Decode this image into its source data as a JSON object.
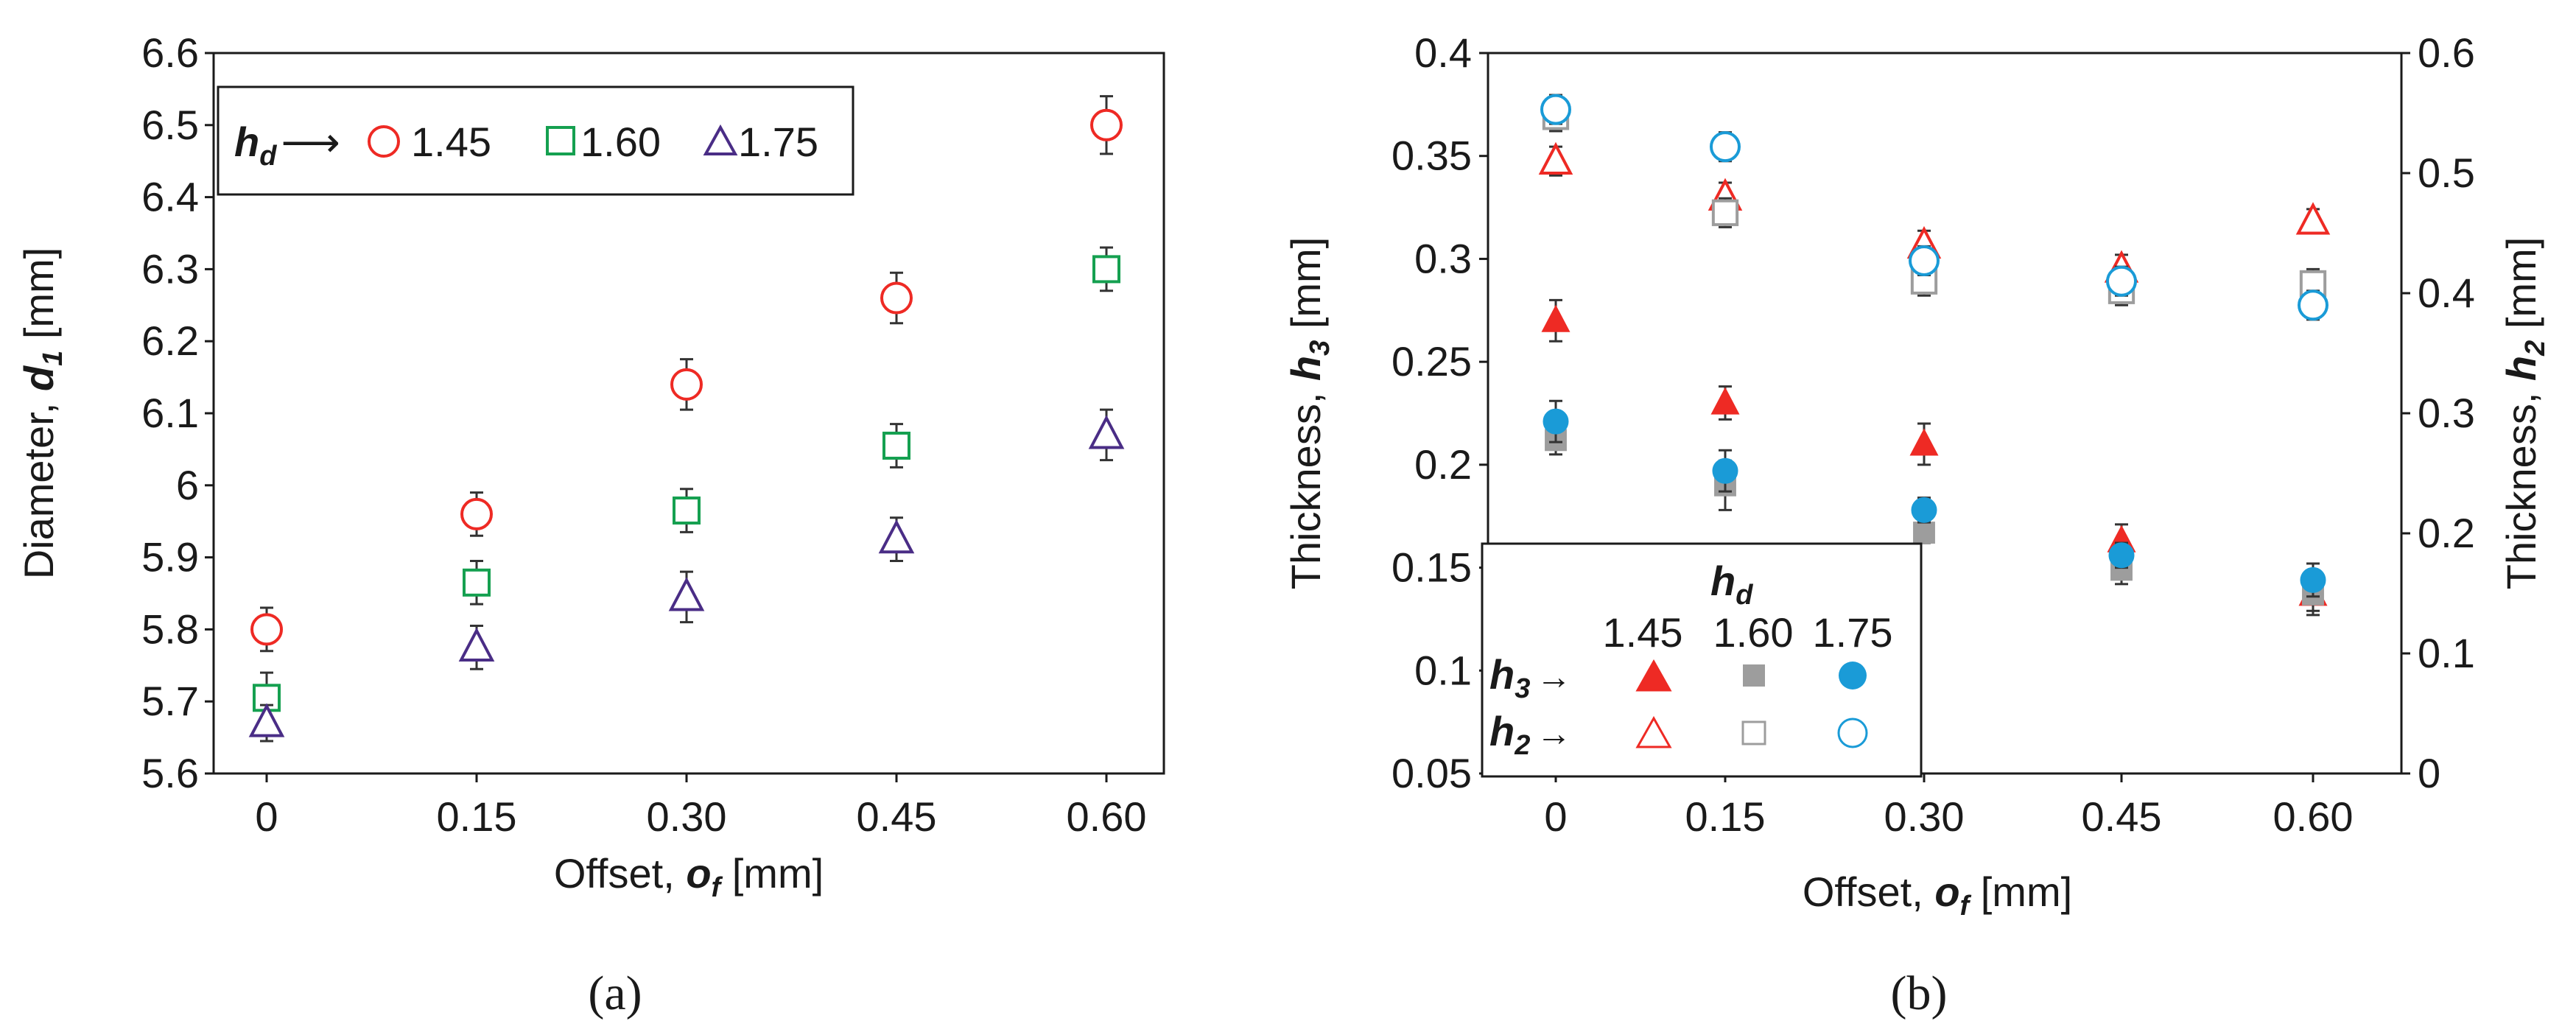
{
  "colors": {
    "red": "#ee2a24",
    "green": "#15a050",
    "purple": "#4a2d86",
    "gray": "#9d9d9d",
    "blue": "#1a9bd7",
    "errorbar": "#333333"
  },
  "chart_data": [
    {
      "id": "a",
      "type": "scatter",
      "caption": "(a)",
      "xlabel": "Offset, ",
      "xlabel_symbol": "o",
      "xlabel_sub": "f",
      "xlabel_unit": " [mm]",
      "ylabel": "Diameter, ",
      "ylabel_symbol": "d",
      "ylabel_sub": "1",
      "ylabel_unit": " [mm]",
      "categories": [
        "0",
        "0.15",
        "0.30",
        "0.45",
        "0.60"
      ],
      "ylim": [
        5.6,
        6.6
      ],
      "yticks": [
        {
          "v": 5.6,
          "label": "5.6"
        },
        {
          "v": 5.7,
          "label": "5.7"
        },
        {
          "v": 5.8,
          "label": "5.8"
        },
        {
          "v": 5.9,
          "label": "5.9"
        },
        {
          "v": 6.0,
          "label": "6"
        },
        {
          "v": 6.1,
          "label": "6.1"
        },
        {
          "v": 6.2,
          "label": "6.2"
        },
        {
          "v": 6.3,
          "label": "6.3"
        },
        {
          "v": 6.4,
          "label": "6.4"
        },
        {
          "v": 6.5,
          "label": "6.5"
        },
        {
          "v": 6.6,
          "label": "6.6"
        }
      ],
      "legend": {
        "title_symbol": "h",
        "title_sub": "d",
        "arrow": "⟶",
        "position": "top-left",
        "entries": [
          "1.45",
          "1.60",
          "1.75"
        ]
      },
      "series": [
        {
          "name": "1.45",
          "marker": "circle",
          "color": "red",
          "values": [
            5.8,
            5.96,
            6.14,
            6.26,
            6.5
          ],
          "error": [
            0.03,
            0.03,
            0.035,
            0.035,
            0.04
          ]
        },
        {
          "name": "1.60",
          "marker": "square",
          "color": "green",
          "values": [
            5.705,
            5.865,
            5.965,
            6.055,
            6.3
          ],
          "error": [
            0.035,
            0.03,
            0.03,
            0.03,
            0.03
          ]
        },
        {
          "name": "1.75",
          "marker": "triangle",
          "color": "purple",
          "values": [
            5.67,
            5.775,
            5.845,
            5.925,
            6.07
          ],
          "error": [
            0.025,
            0.03,
            0.035,
            0.03,
            0.035
          ]
        }
      ]
    },
    {
      "id": "b",
      "type": "scatter",
      "caption": "(b)",
      "xlabel": "Offset, ",
      "xlabel_symbol": "o",
      "xlabel_sub": "f",
      "xlabel_unit": " [mm]",
      "ylabel_left": "Thickness, ",
      "ylabel_left_symbol": "h",
      "ylabel_left_sub": "3",
      "ylabel_left_unit": " [mm]",
      "ylabel_right": "Thickness, ",
      "ylabel_right_symbol": "h",
      "ylabel_right_sub": "2",
      "ylabel_right_unit": " [mm]",
      "categories": [
        "0",
        "0.15",
        "0.30",
        "0.45",
        "0.60"
      ],
      "ylim_left": [
        0.05,
        0.4
      ],
      "ylim_right": [
        0,
        0.6
      ],
      "yticks_left": [
        {
          "v": 0.05,
          "label": "0.05"
        },
        {
          "v": 0.1,
          "label": "0.1"
        },
        {
          "v": 0.15,
          "label": "0.15"
        },
        {
          "v": 0.2,
          "label": "0.2"
        },
        {
          "v": 0.25,
          "label": "0.25"
        },
        {
          "v": 0.3,
          "label": "0.3"
        },
        {
          "v": 0.35,
          "label": "0.35"
        },
        {
          "v": 0.4,
          "label": "0.4"
        }
      ],
      "yticks_right": [
        {
          "v": 0,
          "label": "0"
        },
        {
          "v": 0.1,
          "label": "0.1"
        },
        {
          "v": 0.2,
          "label": "0.2"
        },
        {
          "v": 0.3,
          "label": "0.3"
        },
        {
          "v": 0.4,
          "label": "0.4"
        },
        {
          "v": 0.5,
          "label": "0.5"
        },
        {
          "v": 0.6,
          "label": "0.6"
        }
      ],
      "legend": {
        "title_symbol": "h",
        "title_sub": "d",
        "position": "bottom-left",
        "columns": [
          "1.45",
          "1.60",
          "1.75"
        ],
        "rows": [
          {
            "symbol": "h",
            "sub": "3",
            "arrow": "→",
            "filled": true
          },
          {
            "symbol": "h",
            "sub": "2",
            "arrow": "→",
            "filled": false
          }
        ]
      },
      "series": [
        {
          "name": "h3 1.45",
          "axis": "left",
          "marker": "triangle",
          "fill": true,
          "color": "red",
          "values": [
            0.27,
            0.23,
            0.21,
            0.163,
            0.137
          ],
          "error": [
            0.01,
            0.008,
            0.01,
            0.008,
            0.008
          ]
        },
        {
          "name": "h3 1.60",
          "axis": "left",
          "marker": "square",
          "fill": true,
          "color": "gray",
          "values": [
            0.212,
            0.19,
            0.167,
            0.149,
            0.137
          ],
          "error": [
            0.007,
            0.012,
            0.005,
            0.007,
            0.01
          ]
        },
        {
          "name": "h3 1.75",
          "axis": "left",
          "marker": "circle",
          "fill": true,
          "color": "blue",
          "values": [
            0.221,
            0.197,
            0.178,
            0.156,
            0.144
          ],
          "error": [
            0.01,
            0.01,
            0.006,
            0.006,
            0.008
          ]
        },
        {
          "name": "h2 1.45",
          "axis": "right",
          "marker": "triangle",
          "fill": false,
          "color": "red",
          "values": [
            0.51,
            0.48,
            0.44,
            0.42,
            0.46
          ],
          "error": [
            0.012,
            0.012,
            0.012,
            0.012,
            0.01
          ]
        },
        {
          "name": "h2 1.60",
          "axis": "right",
          "marker": "square",
          "fill": false,
          "color": "gray",
          "values": [
            0.547,
            0.467,
            0.41,
            0.402,
            0.408
          ],
          "error": [
            0.012,
            0.012,
            0.012,
            0.012,
            0.012
          ]
        },
        {
          "name": "h2 1.75",
          "axis": "right",
          "marker": "circle",
          "fill": false,
          "color": "blue",
          "values": [
            0.553,
            0.522,
            0.427,
            0.41,
            0.39
          ],
          "error": [
            0.012,
            0.012,
            0.012,
            0.012,
            0.012
          ]
        }
      ]
    }
  ]
}
